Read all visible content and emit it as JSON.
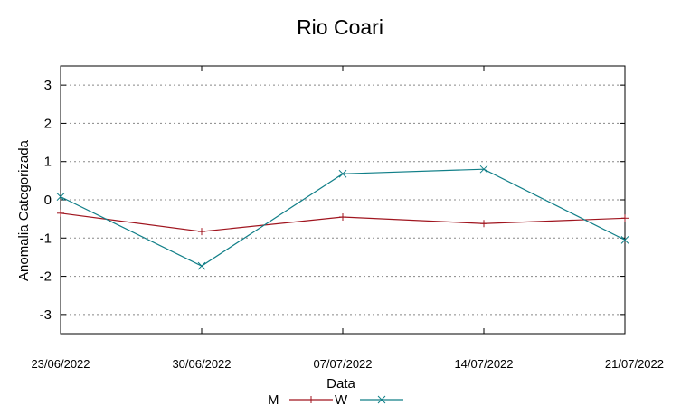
{
  "chart_data": {
    "type": "line",
    "title": "Rio Coari",
    "xlabel": "Data",
    "ylabel": "Anomalia Categorizada",
    "categories": [
      "23/06/2022",
      "30/06/2022",
      "07/07/2022",
      "14/07/2022",
      "21/07/2022"
    ],
    "yticks": [
      "3",
      "2",
      "1",
      "0",
      "-1",
      "-2",
      "-3"
    ],
    "ylim": [
      -3.5,
      3.5
    ],
    "grid": true,
    "legend_position": "bottom",
    "series": [
      {
        "name": "M",
        "values": [
          -0.35,
          -0.83,
          -0.45,
          -0.62,
          -0.48
        ],
        "color": "#a0151f",
        "marker": "plus"
      },
      {
        "name": "W",
        "values": [
          0.08,
          -1.73,
          0.68,
          0.8,
          -1.05
        ],
        "color": "#117f88",
        "marker": "cross"
      }
    ]
  }
}
